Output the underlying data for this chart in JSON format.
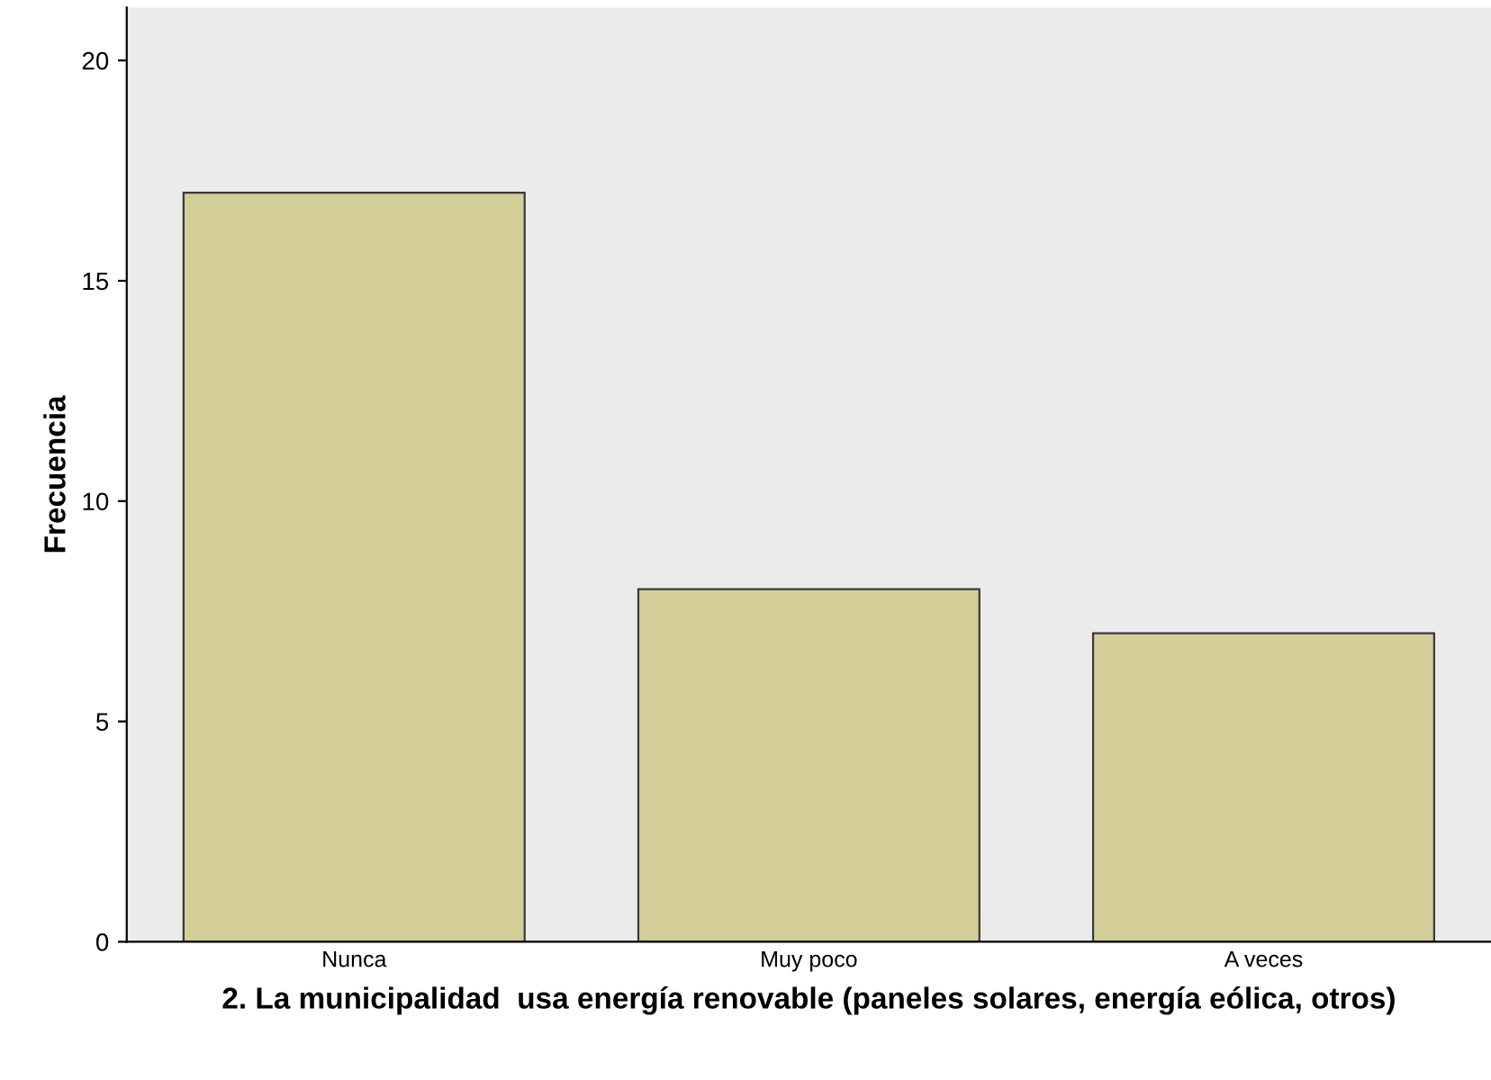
{
  "chart_data": {
    "type": "bar",
    "xlabel": "2. La municipalidad  usa energía renovable (paneles solares, energía eólica, otros)",
    "ylabel": "Frecuencia",
    "categories": [
      "Nunca",
      "Muy poco",
      "A veces"
    ],
    "values": [
      17,
      8,
      7
    ],
    "color": "#d4ce98",
    "ylim": [
      0,
      21.2
    ],
    "yticks": [
      0,
      5,
      10,
      15,
      20
    ],
    "grid": false
  }
}
